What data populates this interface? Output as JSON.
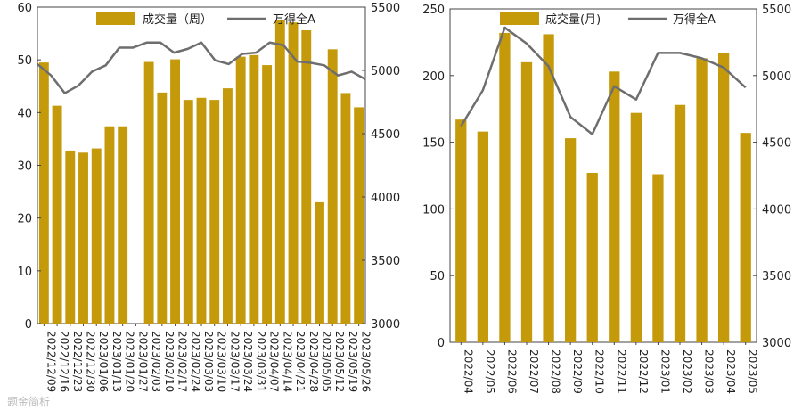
{
  "colors": {
    "bar": "#C49A0A",
    "line": "#6E6E6E",
    "frame": "#444444"
  },
  "watermark": "题金简析",
  "chart_data": [
    {
      "type": "bar",
      "legend": {
        "bar": "成交量（周）",
        "line": "万得全A",
        "placement": "top"
      },
      "categories": [
        "2022/12/09",
        "2022/12/16",
        "2022/12/23",
        "2022/12/30",
        "2023/01/06",
        "2023/01/13",
        "2023/01/20",
        "2023/01/27",
        "2023/02/03",
        "2023/02/10",
        "2023/02/17",
        "2023/02/24",
        "2023/03/03",
        "2023/03/10",
        "2023/03/17",
        "2023/03/24",
        "2023/03/31",
        "2023/04/07",
        "2023/04/14",
        "2023/04/21",
        "2023/04/28",
        "2023/05/05",
        "2023/05/12",
        "2023/05/19",
        "2023/05/26"
      ],
      "series": [
        {
          "name": "成交量（周）",
          "type": "bar",
          "axis": "left",
          "values": [
            49.5,
            41.3,
            32.8,
            32.4,
            33.2,
            37.4,
            37.4,
            null,
            49.6,
            43.8,
            50.1,
            42.4,
            42.8,
            42.4,
            44.6,
            50.6,
            50.9,
            49.0,
            57.6,
            57.1,
            55.6,
            23.0,
            52.0,
            43.7,
            41.0
          ]
        },
        {
          "name": "万得全A",
          "type": "line",
          "axis": "right",
          "values": [
            5050,
            4960,
            4820,
            4880,
            4990,
            5040,
            5180,
            5180,
            5220,
            5220,
            5140,
            5170,
            5220,
            5080,
            5050,
            5130,
            5140,
            5220,
            5200,
            5070,
            5060,
            5040,
            4960,
            4990,
            4930
          ]
        }
      ],
      "yleft": {
        "ticks": [
          0,
          10,
          20,
          30,
          40,
          50,
          60
        ],
        "range": [
          0,
          60
        ]
      },
      "yright": {
        "ticks": [
          "3000",
          "3500",
          "4000",
          "4500",
          "5000",
          "5500"
        ],
        "range": [
          3000,
          5500
        ]
      },
      "grid": false
    },
    {
      "type": "bar",
      "legend": {
        "bar": "成交量(月)",
        "line": "万得全A",
        "placement": "top"
      },
      "categories": [
        "2022/04",
        "2022/05",
        "2022/06",
        "2022/07",
        "2022/08",
        "2022/09",
        "2022/10",
        "2022/11",
        "2022/12",
        "2023/01",
        "2023/02",
        "2023/03",
        "2023/04",
        "2023/05"
      ],
      "series": [
        {
          "name": "成交量(月)",
          "type": "bar",
          "axis": "left",
          "values": [
            167,
            158,
            232,
            210,
            231,
            153,
            127,
            203,
            172,
            126,
            178,
            213,
            217,
            157
          ]
        },
        {
          "name": "万得全A",
          "type": "line",
          "axis": "right",
          "values": [
            4620,
            4890,
            5360,
            5240,
            5070,
            4690,
            4560,
            4920,
            4820,
            5170,
            5170,
            5130,
            5060,
            4910
          ]
        }
      ],
      "yleft": {
        "ticks": [
          0,
          50,
          100,
          150,
          200,
          250
        ],
        "range": [
          0,
          250
        ]
      },
      "yright": {
        "ticks": [
          3000,
          3500,
          4000,
          4500,
          5000,
          5500
        ],
        "range": [
          3000,
          5500
        ]
      },
      "grid": false
    }
  ]
}
